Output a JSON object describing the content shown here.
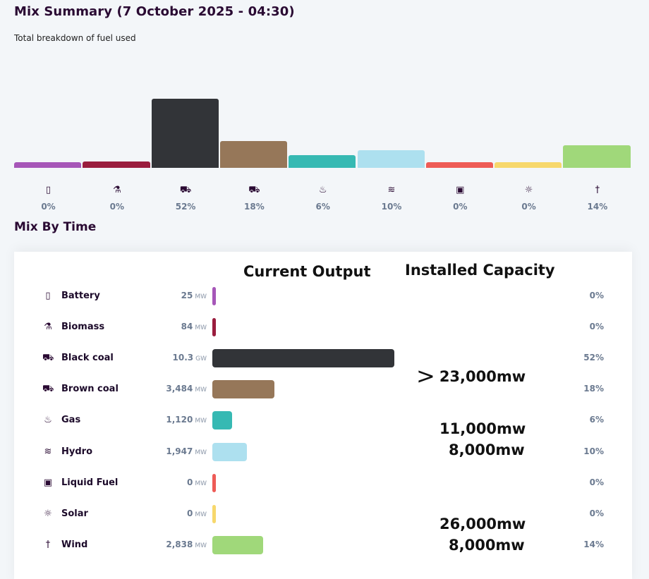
{
  "header": {
    "title": "Mix Summary (7 October 2025 - 04:30)",
    "subtitle": "Total breakdown of fuel used"
  },
  "mix_by_time_title": "Mix By Time",
  "table": {
    "current_output_label": "Current Output",
    "installed_capacity_label": "Installed Capacity"
  },
  "fuels": [
    {
      "name": "Battery",
      "icon": "battery-icon",
      "glyph": "▯",
      "value": "25",
      "unit": "MW",
      "pct": "0%",
      "color": "#a656b8",
      "summary_level": 0.08,
      "bar_level": 0.02
    },
    {
      "name": "Biomass",
      "icon": "biomass-icon",
      "glyph": "⚗",
      "value": "84",
      "unit": "MW",
      "pct": "0%",
      "color": "#9a1d3e",
      "summary_level": 0.09,
      "bar_level": 0.02
    },
    {
      "name": "Black coal",
      "icon": "coal-cart-icon",
      "glyph": "⛟",
      "value": "10.3",
      "unit": "GW",
      "pct": "52%",
      "color": "#323438",
      "summary_level": 1.0,
      "bar_level": 1.0
    },
    {
      "name": "Brown coal",
      "icon": "coal-cart-icon",
      "glyph": "⛟",
      "value": "3,484",
      "unit": "MW",
      "pct": "18%",
      "color": "#967759",
      "summary_level": 0.39,
      "bar_level": 0.34
    },
    {
      "name": "Gas",
      "icon": "flame-icon",
      "glyph": "♨",
      "value": "1,120",
      "unit": "MW",
      "pct": "6%",
      "color": "#36b9b3",
      "summary_level": 0.18,
      "bar_level": 0.11
    },
    {
      "name": "Hydro",
      "icon": "hydro-icon",
      "glyph": "≋",
      "value": "1,947",
      "unit": "MW",
      "pct": "10%",
      "color": "#ade0ef",
      "summary_level": 0.25,
      "bar_level": 0.19
    },
    {
      "name": "Liquid Fuel",
      "icon": "fuel-can-icon",
      "glyph": "▣",
      "value": "0",
      "unit": "MW",
      "pct": "0%",
      "color": "#ee5b56",
      "summary_level": 0.08,
      "bar_level": 0.02
    },
    {
      "name": "Solar",
      "icon": "solar-icon",
      "glyph": "☼",
      "value": "0",
      "unit": "MW",
      "pct": "0%",
      "color": "#f7d86c",
      "summary_level": 0.08,
      "bar_level": 0.02
    },
    {
      "name": "Wind",
      "icon": "wind-turbine-icon",
      "glyph": "†",
      "value": "2,838",
      "unit": "MW",
      "pct": "14%",
      "color": "#a0d87a",
      "summary_level": 0.33,
      "bar_level": 0.28
    }
  ],
  "annotations": {
    "gt_symbol": ">",
    "coal_capacity": "23,000mw",
    "gas_capacity": "11,000mw",
    "hydro_capacity": "8,000mw",
    "solar_capacity": "26,000mw",
    "wind_capacity": "8,000mw"
  }
}
